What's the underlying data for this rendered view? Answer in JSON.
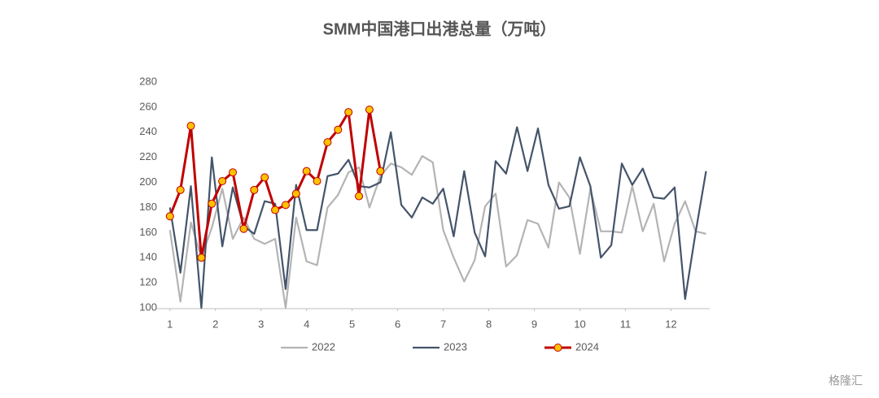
{
  "chart_data": {
    "type": "line",
    "title": "SMM中国港口出港总量（万吨）",
    "x": [
      1.0,
      1.23,
      1.46,
      1.69,
      1.92,
      2.15,
      2.38,
      2.62,
      2.85,
      3.08,
      3.31,
      3.54,
      3.77,
      4.0,
      4.23,
      4.46,
      4.69,
      4.92,
      5.15,
      5.38,
      5.62,
      5.85,
      6.08,
      6.31,
      6.54,
      6.77,
      7.0,
      7.23,
      7.46,
      7.69,
      7.92,
      8.15,
      8.38,
      8.62,
      8.85,
      9.08,
      9.31,
      9.54,
      9.77,
      10.0,
      10.23,
      10.46,
      10.69,
      10.92,
      11.15,
      11.38,
      11.62,
      11.85,
      12.08,
      12.31,
      12.54,
      12.77
    ],
    "series": [
      {
        "name": "2022",
        "color": "#b4b4b4",
        "values": [
          162,
          105,
          168,
          140,
          164,
          195,
          155,
          172,
          155,
          151,
          155,
          100,
          172,
          137,
          134,
          180,
          190,
          208,
          212,
          180,
          205,
          215,
          212,
          206,
          221,
          216,
          162,
          140,
          121,
          138,
          181,
          191,
          133,
          142,
          170,
          167,
          148,
          200,
          188,
          143,
          195,
          161,
          161,
          160,
          197,
          161,
          183,
          137,
          167,
          185,
          161,
          159
        ]
      },
      {
        "name": "2023",
        "color": "#44546a",
        "values": [
          180,
          128,
          197,
          100,
          220,
          149,
          196,
          165,
          159,
          185,
          183,
          115,
          198,
          162,
          162,
          205,
          207,
          218,
          197,
          196,
          200,
          240,
          182,
          172,
          188,
          183,
          195,
          157,
          209,
          160,
          141,
          217,
          207,
          244,
          209,
          243,
          198,
          179,
          181,
          220,
          197,
          140,
          150,
          215,
          198,
          211,
          188,
          187,
          196,
          107,
          160,
          209
        ]
      },
      {
        "name": "2024",
        "color": "#c00000",
        "marker_color": "#ffc000",
        "values": [
          173,
          194,
          245,
          140,
          183,
          201,
          208,
          163,
          194,
          204,
          178,
          182,
          191,
          209,
          201,
          232,
          242,
          256,
          189,
          258,
          209,
          null,
          null,
          null,
          null,
          null,
          null,
          null,
          null,
          null,
          null,
          null,
          null,
          null,
          null,
          null,
          null,
          null,
          null,
          null,
          null,
          null,
          null,
          null,
          null,
          null,
          null,
          null,
          null,
          null,
          null,
          null
        ]
      }
    ],
    "xlim": [
      0.7,
      12.85
    ],
    "xticks": [
      1,
      2,
      3,
      4,
      5,
      6,
      7,
      8,
      9,
      10,
      11,
      12
    ],
    "ylim": [
      100,
      280
    ],
    "yticks": [
      100,
      120,
      140,
      160,
      180,
      200,
      220,
      240,
      260,
      280
    ],
    "grid": false,
    "legend": "bottom",
    "watermark": "格隆汇"
  }
}
